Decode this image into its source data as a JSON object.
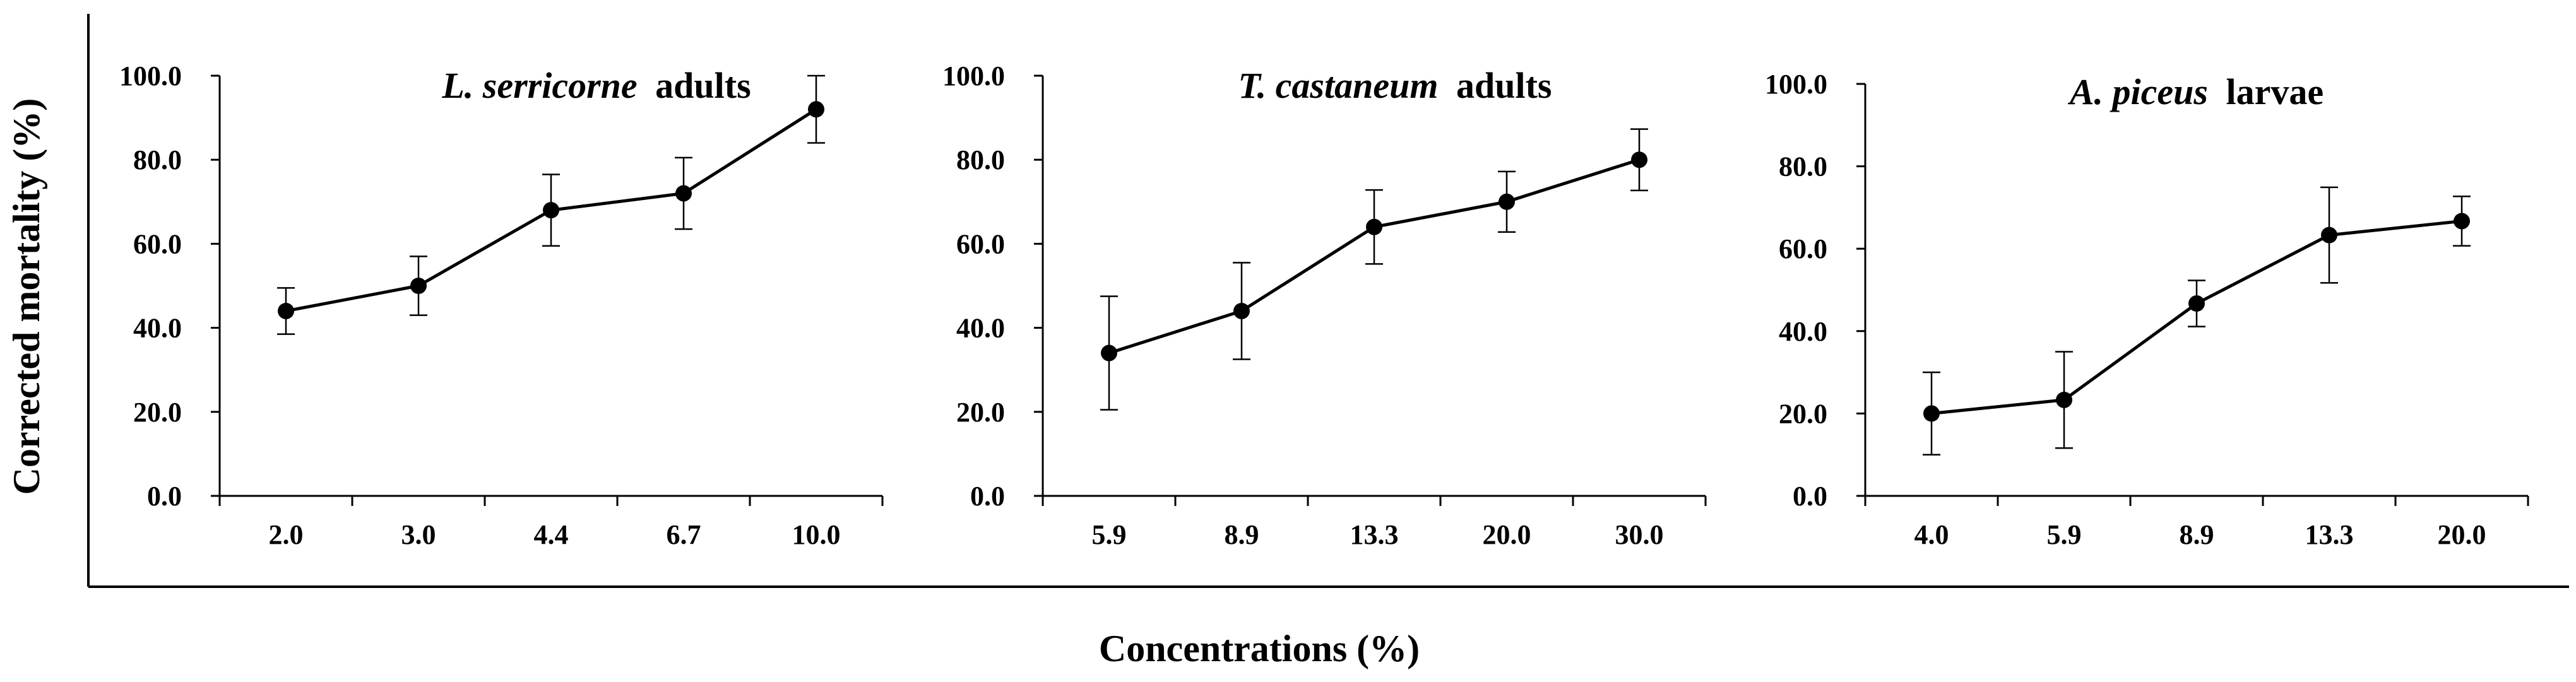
{
  "figure": {
    "ylabel": "Corrected mortality (%)",
    "xlabel": "Concentrations (%)"
  },
  "chart_data": [
    {
      "type": "line",
      "title_italic": "L. serricorne",
      "title_rest": "adults",
      "categories": [
        "2.0",
        "3.0",
        "4.4",
        "6.7",
        "10.0"
      ],
      "values": [
        44.0,
        50.0,
        68.0,
        72.0,
        92.0
      ],
      "errors": [
        5.5,
        7.0,
        8.5,
        8.5,
        8.0
      ],
      "ylim": [
        0,
        100
      ],
      "yticks": [
        "0.0",
        "20.0",
        "40.0",
        "60.0",
        "80.0",
        "100.0"
      ]
    },
    {
      "type": "line",
      "title_italic": "T. castaneum",
      "title_rest": "adults",
      "categories": [
        "5.9",
        "8.9",
        "13.3",
        "20.0",
        "30.0"
      ],
      "values": [
        34.0,
        44.0,
        64.0,
        70.0,
        80.0
      ],
      "errors": [
        13.5,
        11.5,
        8.8,
        7.2,
        7.3
      ],
      "ylim": [
        0,
        100
      ],
      "yticks": [
        "0.0",
        "20.0",
        "40.0",
        "60.0",
        "80.0",
        "100.0"
      ]
    },
    {
      "type": "line",
      "title_italic": "A. piceus",
      "title_rest": "larvae",
      "categories": [
        "4.0",
        "5.9",
        "8.9",
        "13.3",
        "20.0"
      ],
      "values": [
        20.0,
        23.3,
        46.7,
        63.3,
        66.7
      ],
      "errors": [
        10.0,
        11.7,
        5.6,
        11.6,
        6.0
      ],
      "ylim": [
        0,
        100
      ],
      "yticks": [
        "0.0",
        "20.0",
        "40.0",
        "60.0",
        "80.0",
        "100.0"
      ]
    }
  ]
}
